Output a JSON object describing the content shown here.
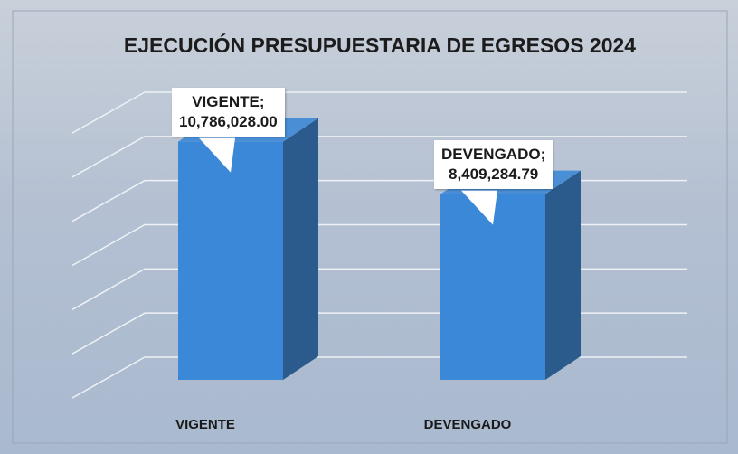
{
  "chart_data": {
    "type": "bar3d",
    "title": "EJECUCIÓN PRESUPUESTARIA DE EGRESOS 2024",
    "categories": [
      "VIGENTE",
      "DEVENGADO"
    ],
    "values": [
      10786028.0,
      8409284.79
    ],
    "value_labels": [
      "VIGENTE;\n10,786,028.00",
      "DEVENGADO;\n8,409,284.79"
    ],
    "color": "#3b88d8",
    "ylim": [
      0,
      12000000
    ],
    "yticks": [
      0,
      2000000,
      4000000,
      6000000,
      8000000,
      10000000,
      12000000
    ],
    "grid": true
  }
}
